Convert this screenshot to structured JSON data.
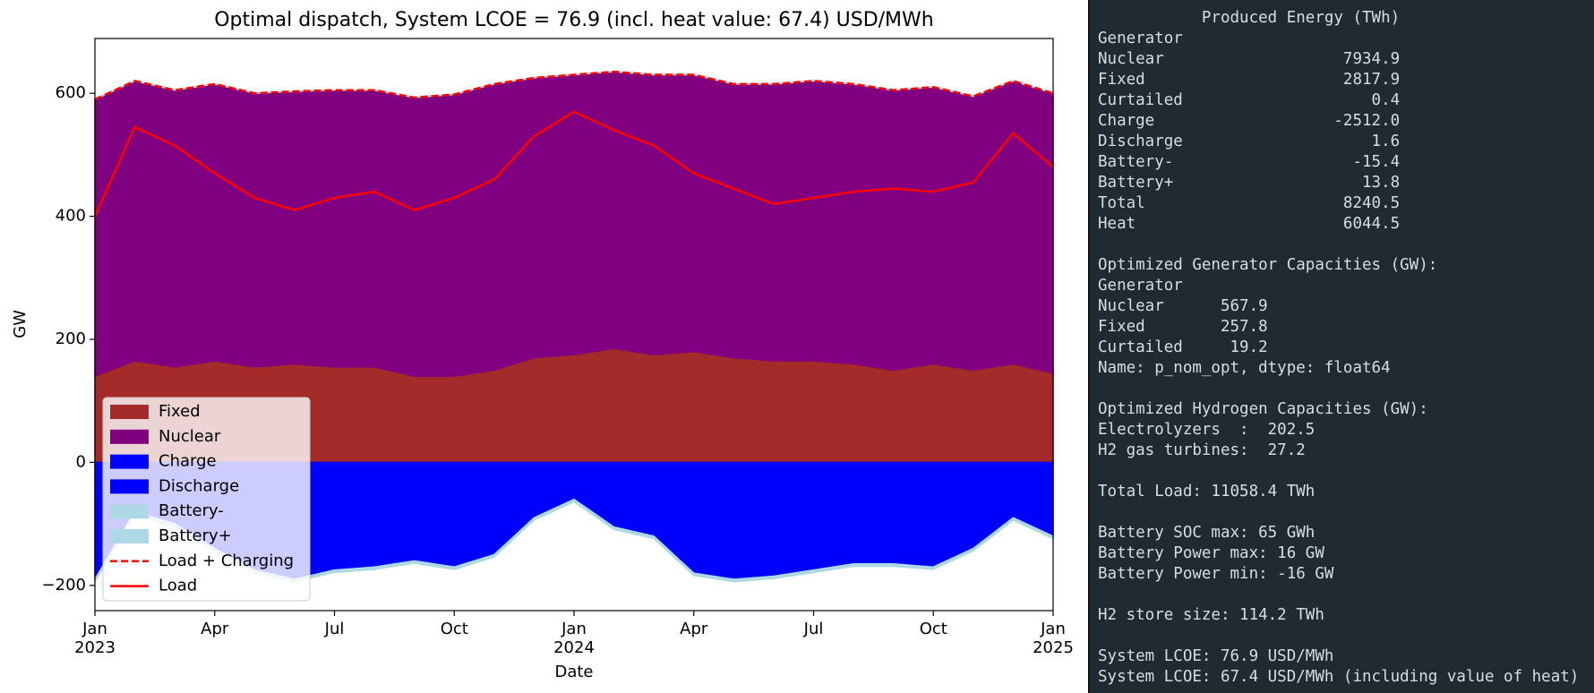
{
  "chart_data": {
    "type": "area",
    "title": "Optimal dispatch, System LCOE = 76.9 (incl. heat value: 67.4) USD/MWh",
    "xlabel": "Date",
    "ylabel": "GW",
    "x": [
      "2023-01",
      "2023-02",
      "2023-03",
      "2023-04",
      "2023-05",
      "2023-06",
      "2023-07",
      "2023-08",
      "2023-09",
      "2023-10",
      "2023-11",
      "2023-12",
      "2024-01",
      "2024-02",
      "2024-03",
      "2024-04",
      "2024-05",
      "2024-06",
      "2024-07",
      "2024-08",
      "2024-09",
      "2024-10",
      "2024-11",
      "2024-12",
      "2025-01"
    ],
    "xlim": [
      "2023-01",
      "2025-01"
    ],
    "xticks": [
      {
        "value": "2023-01",
        "label": "Jan",
        "year": "2023"
      },
      {
        "value": "2023-04",
        "label": "Apr"
      },
      {
        "value": "2023-07",
        "label": "Jul"
      },
      {
        "value": "2023-10",
        "label": "Oct"
      },
      {
        "value": "2024-01",
        "label": "Jan",
        "year": "2024"
      },
      {
        "value": "2024-04",
        "label": "Apr"
      },
      {
        "value": "2024-07",
        "label": "Jul"
      },
      {
        "value": "2024-10",
        "label": "Oct"
      },
      {
        "value": "2025-01",
        "label": "Jan",
        "year": "2025"
      }
    ],
    "ylim": [
      -241,
      689
    ],
    "yticks": [
      {
        "value": -200,
        "label": "−200"
      },
      0,
      200,
      400,
      600
    ],
    "legend": "lower left",
    "series": [
      {
        "name": "Fixed",
        "color": "#a52a2a",
        "values": [
          140,
          165,
          155,
          165,
          155,
          160,
          155,
          155,
          140,
          140,
          150,
          170,
          175,
          185,
          175,
          180,
          170,
          165,
          165,
          160,
          150,
          160,
          150,
          160,
          145
        ]
      },
      {
        "name": "Nuclear",
        "color": "#800080",
        "values": [
          450,
          455,
          450,
          450,
          445,
          443,
          450,
          450,
          453,
          458,
          465,
          455,
          455,
          450,
          455,
          450,
          445,
          450,
          455,
          455,
          455,
          450,
          445,
          460,
          455
        ]
      },
      {
        "name": "Charge",
        "color": "#0000ff",
        "values": [
          -190,
          -80,
          -100,
          -140,
          -175,
          -190,
          -175,
          -170,
          -160,
          -170,
          -150,
          -90,
          -60,
          -105,
          -120,
          -180,
          -190,
          -185,
          -175,
          -165,
          -165,
          -170,
          -140,
          -90,
          -120
        ]
      },
      {
        "name": "Discharge",
        "color": "#0000ff",
        "values": [
          0,
          0,
          0,
          0,
          0,
          0,
          0,
          0,
          0,
          0,
          0,
          0,
          0,
          0,
          0,
          0,
          0,
          0,
          0,
          0,
          0,
          0,
          0,
          0,
          0
        ]
      },
      {
        "name": "Battery-",
        "color": "#add8e6",
        "values": [
          -4,
          -4,
          -4,
          -4,
          -4,
          -4,
          -4,
          -4,
          -4,
          -4,
          -4,
          -4,
          -4,
          -4,
          -4,
          -4,
          -4,
          -4,
          -4,
          -4,
          -4,
          -4,
          -4,
          -4,
          -4
        ]
      },
      {
        "name": "Battery+",
        "color": "#add8e6",
        "values": [
          0,
          0,
          0,
          0,
          0,
          0,
          0,
          0,
          0,
          0,
          0,
          0,
          0,
          0,
          0,
          0,
          0,
          0,
          0,
          0,
          0,
          0,
          0,
          0,
          0
        ]
      },
      {
        "name": "Load + Charging",
        "color": "#ff0000",
        "type": "line",
        "style": "dashed",
        "values": [
          590,
          620,
          605,
          615,
          600,
          603,
          605,
          605,
          593,
          598,
          615,
          625,
          630,
          635,
          630,
          630,
          615,
          615,
          620,
          615,
          605,
          610,
          595,
          620,
          600
        ]
      },
      {
        "name": "Load",
        "color": "#ff0000",
        "type": "line",
        "style": "solid",
        "values": [
          400,
          545,
          515,
          470,
          430,
          410,
          430,
          440,
          410,
          430,
          460,
          530,
          570,
          540,
          515,
          470,
          445,
          420,
          430,
          440,
          445,
          440,
          455,
          535,
          480
        ]
      }
    ]
  },
  "terminal": {
    "blocks": [
      [
        "           Produced Energy (TWh)",
        "Generator",
        "Nuclear                   7934.9",
        "Fixed                     2817.9",
        "Curtailed                    0.4",
        "Charge                   -2512.0",
        "Discharge                    1.6",
        "Battery-                   -15.4",
        "Battery+                    13.8",
        "Total                     8240.5",
        "Heat                      6044.5"
      ],
      [
        "Optimized Generator Capacities (GW):",
        "Generator",
        "Nuclear      567.9",
        "Fixed        257.8",
        "Curtailed     19.2",
        "Name: p_nom_opt, dtype: float64"
      ],
      [
        "Optimized Hydrogen Capacities (GW):",
        "Electrolyzers  :  202.5",
        "H2 gas turbines:  27.2"
      ],
      [
        "Total Load: 11058.4 TWh"
      ],
      [
        "Battery SOC max: 65 GWh",
        "Battery Power max: 16 GW",
        "Battery Power min: -16 GW"
      ],
      [
        "H2 store size: 114.2 TWh"
      ],
      [
        "System LCOE: 76.9 USD/MWh",
        "System LCOE: 67.4 USD/MWh (including value of heat)"
      ]
    ]
  }
}
